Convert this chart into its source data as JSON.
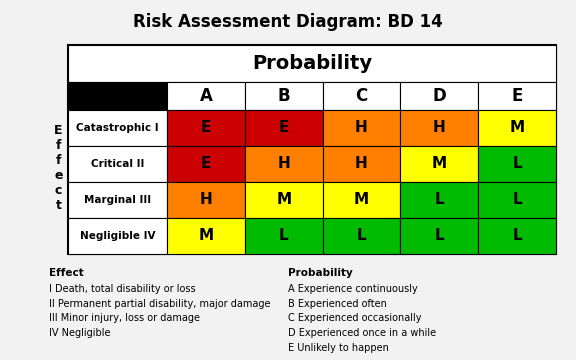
{
  "title": "Risk Assessment Diagram: BD 14",
  "prob_header": "Probability",
  "effect_label": "E\nf\nf\ne\nc\nt",
  "col_headers": [
    "A",
    "B",
    "C",
    "D",
    "E"
  ],
  "row_headers": [
    "Catastrophic I",
    "Critical II",
    "Marginal III",
    "Negligible IV"
  ],
  "cell_values": [
    [
      "E",
      "E",
      "H",
      "H",
      "M"
    ],
    [
      "E",
      "H",
      "H",
      "M",
      "L"
    ],
    [
      "H",
      "M",
      "M",
      "L",
      "L"
    ],
    [
      "M",
      "L",
      "L",
      "L",
      "L"
    ]
  ],
  "cell_colors": [
    [
      "#cc0000",
      "#cc0000",
      "#ff8000",
      "#ff8000",
      "#ffff00"
    ],
    [
      "#cc0000",
      "#ff8000",
      "#ff8000",
      "#ffff00",
      "#00bb00"
    ],
    [
      "#ff8000",
      "#ffff00",
      "#ffff00",
      "#00bb00",
      "#00bb00"
    ],
    [
      "#ffff00",
      "#00bb00",
      "#00bb00",
      "#00bb00",
      "#00bb00"
    ]
  ],
  "legend_effect_title": "Effect",
  "legend_effect_lines": [
    "I Death, total disability or loss",
    "II Permanent partial disability, major damage",
    "III Minor injury, loss or damage",
    "IV Negligible"
  ],
  "legend_prob_title": "Probability",
  "legend_prob_lines": [
    "A Experience continuously",
    "B Experienced often",
    "C Experienced occasionally",
    "D Experienced once in a while",
    "E Unlikely to happen"
  ],
  "bg_color": "#f2f2f2",
  "title_fontsize": 12,
  "prob_header_fontsize": 14,
  "col_header_fontsize": 12,
  "cell_fontsize": 11,
  "row_header_fontsize": 7.5,
  "effect_label_fontsize": 9,
  "legend_fontsize": 7.0
}
